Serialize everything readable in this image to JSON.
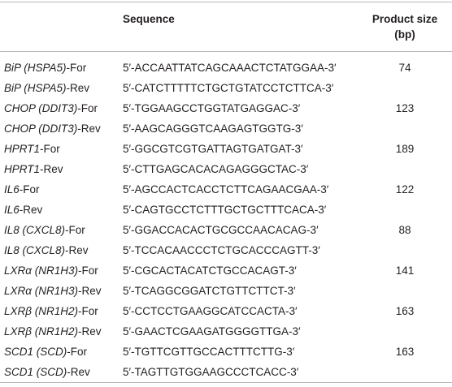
{
  "header": {
    "sequence": "Sequence",
    "size_line1": "Product size",
    "size_line2": "(bp)"
  },
  "rows": [
    {
      "gene": "BiP (HSPA5)",
      "suffix": "-For",
      "sequence": "5′-ACCAATTATCAGCAAACTCTATGGAA-3′",
      "size": "74"
    },
    {
      "gene": "BiP (HSPA5)",
      "suffix": "-Rev",
      "sequence": "5′-CATCTTTTTCTGCTGTATCCTCTTCA-3′",
      "size": ""
    },
    {
      "gene": "CHOP (DDIT3)",
      "suffix": "-For",
      "sequence": "5′-TGGAAGCCTGGTATGAGGAC-3′",
      "size": "123"
    },
    {
      "gene": "CHOP (DDIT3)",
      "suffix": "-Rev",
      "sequence": "5′-AAGCAGGGTCAAGAGTGGTG-3′",
      "size": ""
    },
    {
      "gene": "HPRT1",
      "suffix": "-For",
      "sequence": "5′-GGCGTCGTGATTAGTGATGAT-3′",
      "size": "189"
    },
    {
      "gene": "HPRT1",
      "suffix": "-Rev",
      "sequence": "5′-CTTGAGCACACAGAGGGCTAC-3′",
      "size": ""
    },
    {
      "gene": "IL6",
      "suffix": "-For",
      "sequence": "5′-AGCCACTCACCTCTTCAGAACGAA-3′",
      "size": "122"
    },
    {
      "gene": "IL6",
      "suffix": "-Rev",
      "sequence": "5′-CAGTGCCTCTTTGCTGCTTTCACA-3′",
      "size": ""
    },
    {
      "gene": "IL8 (CXCL8)",
      "suffix": "-For",
      "sequence": "5′-GGACCACACTGCGCCAACACAG-3′",
      "size": "88"
    },
    {
      "gene": "IL8 (CXCL8)",
      "suffix": "-Rev",
      "sequence": "5′-TCCACAACCCTCTGCACCCAGTT-3′",
      "size": ""
    },
    {
      "gene": "LXRα (NR1H3)",
      "suffix": "-For",
      "sequence": "5′-CGCACTACATCTGCCACAGT-3′",
      "size": "141"
    },
    {
      "gene": "LXRα (NR1H3)",
      "suffix": "-Rev",
      "sequence": "5′-TCAGGCGGATCTGTTCTTCT-3′",
      "size": ""
    },
    {
      "gene": "LXRβ (NR1H2)",
      "suffix": "-For",
      "sequence": "5′-CCTCCTGAAGGCATCCACTA-3′",
      "size": "163"
    },
    {
      "gene": "LXRβ (NR1H2)",
      "suffix": "-Rev",
      "sequence": "5′-GAACTCGAAGATGGGGTTGA-3′",
      "size": ""
    },
    {
      "gene": "SCD1 (SCD)",
      "suffix": "-For",
      "sequence": "5′-TGTTCGTTGCCACTTTCTTG-3′",
      "size": "163"
    },
    {
      "gene": "SCD1 (SCD)",
      "suffix": "-Rev",
      "sequence": "5′-TAGTTGTGGAAGCCCTCACC-3′",
      "size": ""
    }
  ]
}
